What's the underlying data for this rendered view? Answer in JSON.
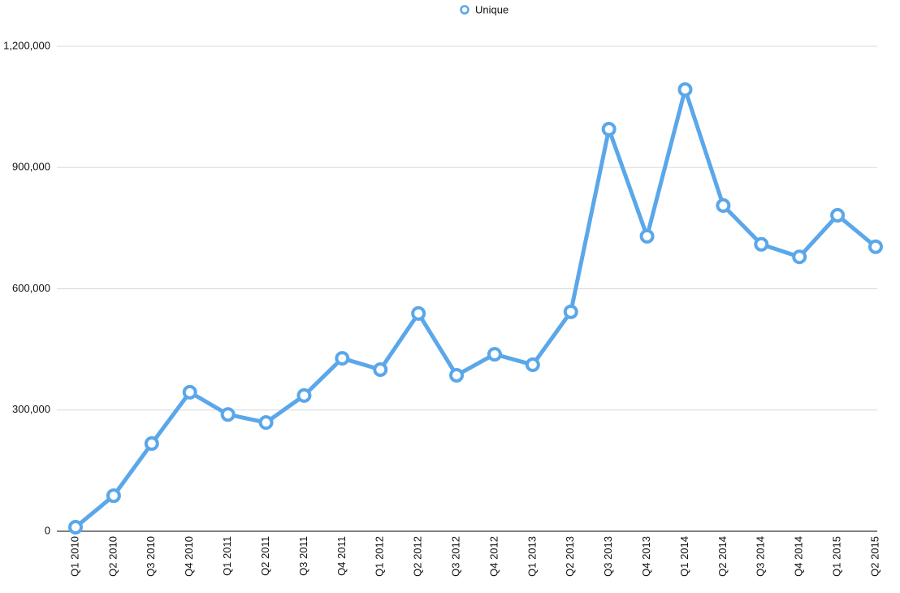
{
  "chart_data": {
    "type": "line",
    "categories": [
      "Q1 2010",
      "Q2 2010",
      "Q3 2010",
      "Q4 2010",
      "Q1 2011",
      "Q2 2011",
      "Q3 2011",
      "Q4 2011",
      "Q1 2012",
      "Q2 2012",
      "Q3 2012",
      "Q4 2012",
      "Q1 2013",
      "Q2 2013",
      "Q3 2013",
      "Q4 2013",
      "Q1 2014",
      "Q2 2014",
      "Q3 2014",
      "Q4 2014",
      "Q1 2015",
      "Q2 2015"
    ],
    "series": [
      {
        "name": "Unique",
        "color": "#5aa7ea",
        "values": [
          10000,
          88000,
          217000,
          344000,
          289000,
          269000,
          336000,
          428000,
          400000,
          539000,
          386000,
          438000,
          412000,
          543000,
          995000,
          730000,
          1093000,
          806000,
          710000,
          679000,
          782000,
          704000
        ]
      }
    ],
    "ylim": [
      0,
      1200000
    ],
    "yticks": [
      0,
      {
        "value": 300000,
        "label": "300,000"
      },
      {
        "value": 600000,
        "label": "600,000"
      },
      {
        "value": 900000,
        "label": "900,000"
      },
      {
        "value": 1200000,
        "label": "1,200,000"
      }
    ],
    "grid": true,
    "legend": "top"
  }
}
